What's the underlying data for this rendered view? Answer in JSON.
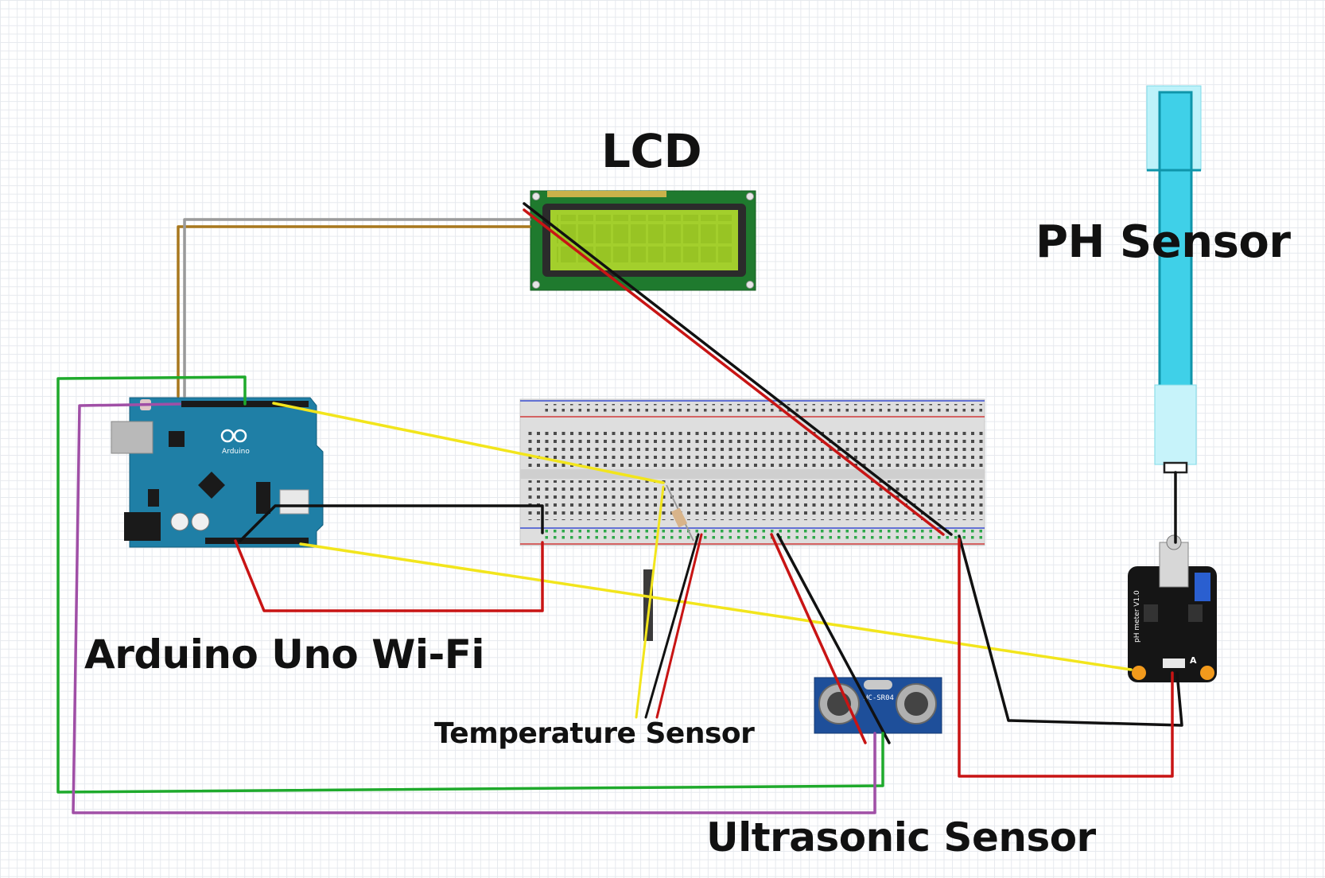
{
  "labels": {
    "lcd": "LCD",
    "ph_sensor": "PH Sensor",
    "arduino": "Arduino Uno Wi-Fi",
    "temperature_sensor": "Temperature Sensor",
    "ultrasonic_sensor": "Ultrasonic Sensor"
  },
  "component_text": {
    "arduino_logo": "Arduino",
    "ultrasonic_model": "HC-SR04",
    "ph_board_marking": "pH meter V1.0",
    "ph_board_a": "A"
  },
  "colors": {
    "arduino_board": "#1f7fa6",
    "lcd_board": "#1f7a2e",
    "lcd_screen": "#a3cf2c",
    "breadboard": "#dcdcdc",
    "ultrasonic_board": "#1e4f9a",
    "ph_probe": "#3fd0e8",
    "ph_board": "#151515",
    "wire_yellow": "#f2e51c",
    "wire_red": "#c81414",
    "wire_black": "#111111",
    "wire_green": "#1faa2c",
    "wire_purple": "#a04fa6",
    "wire_brown": "#a8781e",
    "wire_gray": "#9a9a9a"
  }
}
